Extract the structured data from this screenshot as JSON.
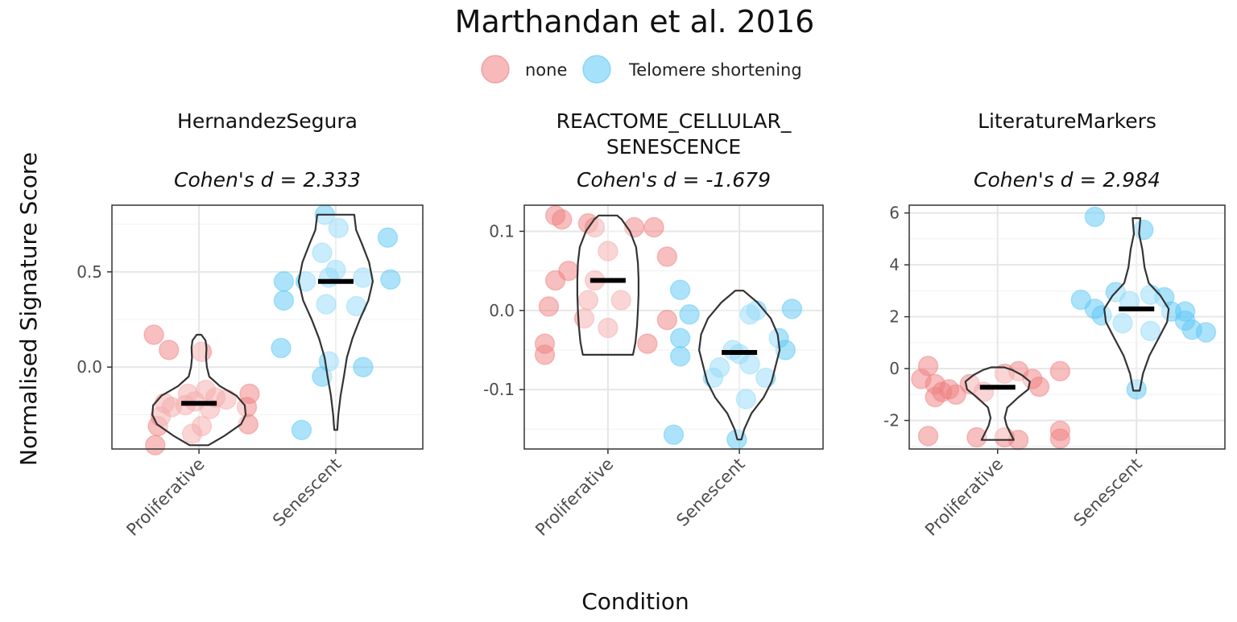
{
  "chart_data": {
    "type": "violin",
    "title": "Marthandan et al. 2016",
    "xlabel": "Condition",
    "ylabel": "Normalised Signature Score",
    "legend": {
      "position": "top",
      "entries": [
        {
          "label": "none",
          "color": "#F08080"
        },
        {
          "label": "Telomere shortening",
          "color": "#5BC8F5"
        }
      ]
    },
    "categories": [
      "Proliferative",
      "Senescent"
    ],
    "panels": [
      {
        "strip_lines": [
          "HernandezSegura"
        ],
        "subtitle": "Cohen's d = 2.333",
        "ylim": [
          -0.43,
          0.85
        ],
        "yticks": [
          0.0,
          0.5
        ],
        "ytick_labels": [
          "0.0",
          "0.5"
        ],
        "groups": [
          {
            "category": "Proliferative",
            "median": -0.19,
            "violin": [
              [
                -0.41,
                0.2
              ],
              [
                -0.36,
                0.55
              ],
              [
                -0.3,
                0.9
              ],
              [
                -0.25,
                1.0
              ],
              [
                -0.2,
                0.98
              ],
              [
                -0.15,
                0.8
              ],
              [
                -0.1,
                0.45
              ],
              [
                -0.05,
                0.22
              ],
              [
                0.0,
                0.17
              ],
              [
                0.05,
                0.15
              ],
              [
                0.1,
                0.16
              ],
              [
                0.14,
                0.14
              ],
              [
                0.17,
                0.05
              ]
            ],
            "points": [
              {
                "x": -0.33,
                "y": 0.17
              },
              {
                "x": -0.22,
                "y": 0.09
              },
              {
                "x": 0.02,
                "y": 0.08
              },
              {
                "x": -0.25,
                "y": -0.19
              },
              {
                "x": -0.2,
                "y": -0.21
              },
              {
                "x": -0.08,
                "y": -0.14
              },
              {
                "x": -0.03,
                "y": -0.18
              },
              {
                "x": 0.05,
                "y": -0.12
              },
              {
                "x": 0.12,
                "y": -0.16
              },
              {
                "x": 0.2,
                "y": -0.17
              },
              {
                "x": 0.35,
                "y": -0.21
              },
              {
                "x": 0.37,
                "y": -0.14
              },
              {
                "x": -0.3,
                "y": -0.31
              },
              {
                "x": -0.28,
                "y": -0.26
              },
              {
                "x": -0.05,
                "y": -0.35
              },
              {
                "x": 0.02,
                "y": -0.31
              },
              {
                "x": 0.36,
                "y": -0.3
              },
              {
                "x": -0.32,
                "y": -0.41
              },
              {
                "x": -0.1,
                "y": -0.2
              },
              {
                "x": 0.08,
                "y": -0.22
              }
            ]
          },
          {
            "category": "Senescent",
            "median": 0.45,
            "violin": [
              [
                -0.33,
                0.04
              ],
              [
                -0.25,
                0.07
              ],
              [
                -0.15,
                0.13
              ],
              [
                -0.05,
                0.22
              ],
              [
                0.05,
                0.3
              ],
              [
                0.15,
                0.45
              ],
              [
                0.25,
                0.65
              ],
              [
                0.35,
                0.88
              ],
              [
                0.45,
                1.0
              ],
              [
                0.55,
                0.9
              ],
              [
                0.65,
                0.7
              ],
              [
                0.72,
                0.55
              ],
              [
                0.8,
                0.5
              ]
            ],
            "points": [
              {
                "x": -0.08,
                "y": 0.8
              },
              {
                "x": 0.02,
                "y": 0.73
              },
              {
                "x": 0.38,
                "y": 0.68
              },
              {
                "x": -0.1,
                "y": 0.6
              },
              {
                "x": -0.38,
                "y": 0.45
              },
              {
                "x": -0.22,
                "y": 0.45
              },
              {
                "x": -0.05,
                "y": 0.47
              },
              {
                "x": 0.0,
                "y": 0.51
              },
              {
                "x": 0.2,
                "y": 0.47
              },
              {
                "x": 0.4,
                "y": 0.46
              },
              {
                "x": -0.38,
                "y": 0.35
              },
              {
                "x": -0.07,
                "y": 0.33
              },
              {
                "x": 0.15,
                "y": 0.32
              },
              {
                "x": -0.4,
                "y": 0.1
              },
              {
                "x": -0.05,
                "y": 0.03
              },
              {
                "x": -0.1,
                "y": -0.05
              },
              {
                "x": 0.2,
                "y": 0.0
              },
              {
                "x": -0.25,
                "y": -0.33
              }
            ]
          }
        ]
      },
      {
        "strip_lines": [
          "REACTOME_CELLULAR_",
          "SENESCENCE"
        ],
        "subtitle": "Cohen's d = -1.679",
        "ylim": [
          -0.175,
          0.133
        ],
        "yticks": [
          -0.1,
          0.0,
          0.1
        ],
        "ytick_labels": [
          "-0.1",
          "0.0",
          "0.1"
        ],
        "groups": [
          {
            "category": "Proliferative",
            "median": 0.038,
            "violin": [
              [
                -0.056,
                0.82
              ],
              [
                -0.04,
                0.9
              ],
              [
                -0.02,
                0.95
              ],
              [
                0.0,
                0.98
              ],
              [
                0.02,
                1.0
              ],
              [
                0.04,
                1.0
              ],
              [
                0.06,
                0.98
              ],
              [
                0.08,
                0.92
              ],
              [
                0.1,
                0.72
              ],
              [
                0.115,
                0.45
              ],
              [
                0.12,
                0.3
              ]
            ],
            "points": [
              {
                "x": -0.4,
                "y": 0.12
              },
              {
                "x": -0.35,
                "y": 0.115
              },
              {
                "x": -0.15,
                "y": 0.11
              },
              {
                "x": -0.1,
                "y": 0.105
              },
              {
                "x": 0.2,
                "y": 0.105
              },
              {
                "x": 0.35,
                "y": 0.105
              },
              {
                "x": 0.0,
                "y": 0.075
              },
              {
                "x": 0.45,
                "y": 0.068
              },
              {
                "x": -0.3,
                "y": 0.05
              },
              {
                "x": -0.4,
                "y": 0.038
              },
              {
                "x": -0.1,
                "y": 0.038
              },
              {
                "x": -0.15,
                "y": 0.013
              },
              {
                "x": 0.1,
                "y": 0.013
              },
              {
                "x": -0.45,
                "y": 0.005
              },
              {
                "x": -0.18,
                "y": -0.01
              },
              {
                "x": 0.0,
                "y": -0.022
              },
              {
                "x": 0.45,
                "y": -0.012
              },
              {
                "x": 0.3,
                "y": -0.042
              },
              {
                "x": -0.48,
                "y": -0.042
              },
              {
                "x": -0.48,
                "y": -0.056
              }
            ]
          },
          {
            "category": "Senescent",
            "median": -0.053,
            "violin": [
              [
                -0.163,
                0.05
              ],
              [
                -0.15,
                0.12
              ],
              [
                -0.13,
                0.3
              ],
              [
                -0.11,
                0.6
              ],
              [
                -0.09,
                0.8
              ],
              [
                -0.07,
                0.9
              ],
              [
                -0.05,
                1.0
              ],
              [
                -0.03,
                0.95
              ],
              [
                -0.01,
                0.78
              ],
              [
                0.01,
                0.45
              ],
              [
                0.025,
                0.1
              ]
            ],
            "points": [
              {
                "x": -0.45,
                "y": 0.026
              },
              {
                "x": -0.38,
                "y": -0.005
              },
              {
                "x": 0.08,
                "y": -0.005
              },
              {
                "x": 0.4,
                "y": 0.002
              },
              {
                "x": 0.13,
                "y": 0.0
              },
              {
                "x": -0.45,
                "y": -0.035
              },
              {
                "x": -0.05,
                "y": -0.05
              },
              {
                "x": 0.0,
                "y": -0.055
              },
              {
                "x": 0.08,
                "y": -0.068
              },
              {
                "x": -0.15,
                "y": -0.072
              },
              {
                "x": -0.2,
                "y": -0.085
              },
              {
                "x": 0.3,
                "y": -0.035
              },
              {
                "x": 0.35,
                "y": -0.05
              },
              {
                "x": -0.45,
                "y": -0.058
              },
              {
                "x": 0.2,
                "y": -0.085
              },
              {
                "x": 0.05,
                "y": -0.112
              },
              {
                "x": -0.5,
                "y": -0.157
              },
              {
                "x": -0.02,
                "y": -0.163
              }
            ]
          }
        ]
      },
      {
        "strip_lines": [
          "LiteratureMarkers"
        ],
        "subtitle": "Cohen's d = 2.984",
        "ylim": [
          -3.1,
          6.3
        ],
        "yticks": [
          -2,
          0,
          2,
          4,
          6
        ],
        "ytick_labels": [
          "-2",
          "0",
          "2",
          "4",
          "6"
        ],
        "groups": [
          {
            "category": "Proliferative",
            "median": -0.72,
            "violin": [
              [
                -2.75,
                0.5
              ],
              [
                -2.5,
                0.4
              ],
              [
                -2.2,
                0.28
              ],
              [
                -1.9,
                0.22
              ],
              [
                -1.5,
                0.3
              ],
              [
                -1.1,
                0.65
              ],
              [
                -0.8,
                0.95
              ],
              [
                -0.5,
                1.0
              ],
              [
                -0.25,
                0.75
              ],
              [
                -0.05,
                0.45
              ],
              [
                0.05,
                0.2
              ]
            ],
            "points": [
              {
                "x": -0.5,
                "y": 0.1
              },
              {
                "x": -0.45,
                "y": -0.6
              },
              {
                "x": -0.55,
                "y": -0.4
              },
              {
                "x": -0.4,
                "y": -0.9
              },
              {
                "x": -0.35,
                "y": -0.8
              },
              {
                "x": -0.3,
                "y": -1.0
              },
              {
                "x": -0.2,
                "y": -0.6
              },
              {
                "x": -0.1,
                "y": -0.9
              },
              {
                "x": 0.05,
                "y": -0.2
              },
              {
                "x": 0.15,
                "y": -0.1
              },
              {
                "x": 0.25,
                "y": -0.4
              },
              {
                "x": 0.3,
                "y": -0.7
              },
              {
                "x": 0.45,
                "y": -0.1
              },
              {
                "x": -0.45,
                "y": -1.1
              },
              {
                "x": -0.5,
                "y": -2.6
              },
              {
                "x": -0.15,
                "y": -2.65
              },
              {
                "x": 0.05,
                "y": -2.65
              },
              {
                "x": 0.15,
                "y": -2.75
              },
              {
                "x": 0.45,
                "y": -2.4
              },
              {
                "x": 0.45,
                "y": -2.7
              }
            ]
          },
          {
            "category": "Senescent",
            "median": 2.3,
            "violin": [
              [
                -0.85,
                0.1
              ],
              [
                -0.2,
                0.2
              ],
              [
                0.5,
                0.4
              ],
              [
                1.2,
                0.7
              ],
              [
                1.8,
                0.95
              ],
              [
                2.3,
                1.0
              ],
              [
                2.8,
                0.75
              ],
              [
                3.3,
                0.38
              ],
              [
                3.9,
                0.25
              ],
              [
                4.6,
                0.18
              ],
              [
                5.2,
                0.08
              ],
              [
                5.8,
                0.12
              ]
            ],
            "points": [
              {
                "x": -0.3,
                "y": 5.85
              },
              {
                "x": 0.05,
                "y": 5.35
              },
              {
                "x": -0.4,
                "y": 2.65
              },
              {
                "x": -0.3,
                "y": 2.3
              },
              {
                "x": -0.25,
                "y": 2.05
              },
              {
                "x": -0.15,
                "y": 2.95
              },
              {
                "x": -0.05,
                "y": 2.6
              },
              {
                "x": 0.1,
                "y": 2.85
              },
              {
                "x": 0.2,
                "y": 2.75
              },
              {
                "x": 0.25,
                "y": 2.2
              },
              {
                "x": 0.35,
                "y": 1.85
              },
              {
                "x": 0.4,
                "y": 1.5
              },
              {
                "x": -0.1,
                "y": 1.75
              },
              {
                "x": 0.1,
                "y": 1.45
              },
              {
                "x": 0.5,
                "y": 1.4
              },
              {
                "x": 0.35,
                "y": 2.2
              },
              {
                "x": 0.0,
                "y": -0.8
              }
            ]
          }
        ]
      }
    ]
  }
}
